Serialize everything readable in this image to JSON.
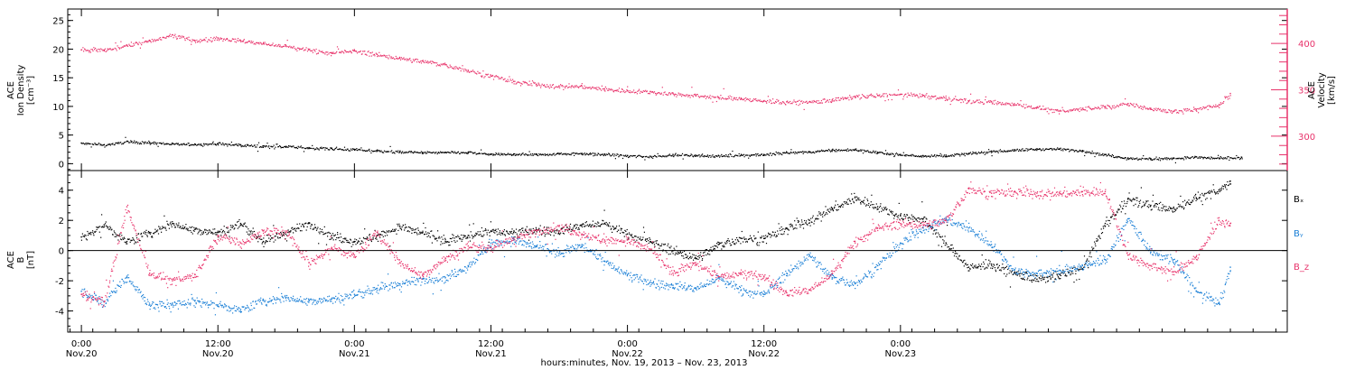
{
  "chart_data": [
    {
      "type": "scatter",
      "panel": "plasma",
      "ylabel_left": [
        "ACE",
        "Ion Density",
        "[cm⁻³]"
      ],
      "ylabel_right": [
        "ACE",
        "Velocity",
        "[km/s]"
      ],
      "y_left": {
        "ticks": [
          0,
          5,
          10,
          15,
          20,
          25
        ],
        "lim": [
          -1.2,
          27
        ]
      },
      "y_right": {
        "ticks": [
          300,
          350,
          400
        ],
        "lim": [
          263,
          437
        ]
      },
      "x": {
        "lim_hours": [
          -1.2,
          106
        ]
      },
      "series": [
        {
          "axis": "left",
          "color": "#000000",
          "points": [
            [
              0,
              3.6
            ],
            [
              2,
              3.3
            ],
            [
              4,
              3.9
            ],
            [
              6,
              3.7
            ],
            [
              8,
              3.5
            ],
            [
              10,
              3.4
            ],
            [
              12,
              3.5
            ],
            [
              14,
              3.3
            ],
            [
              16,
              3.1
            ],
            [
              18,
              3.0
            ],
            [
              20,
              2.8
            ],
            [
              22,
              2.7
            ],
            [
              24,
              2.5
            ],
            [
              26,
              2.3
            ],
            [
              28,
              2.1
            ],
            [
              30,
              2.0
            ],
            [
              32,
              2.0
            ],
            [
              34,
              2.0
            ],
            [
              36,
              1.7
            ],
            [
              38,
              1.7
            ],
            [
              40,
              1.7
            ],
            [
              42,
              1.8
            ],
            [
              44,
              1.8
            ],
            [
              46,
              1.7
            ],
            [
              48,
              1.4
            ],
            [
              50,
              1.3
            ],
            [
              52,
              1.6
            ],
            [
              54,
              1.5
            ],
            [
              56,
              1.4
            ],
            [
              58,
              1.6
            ],
            [
              60,
              1.6
            ],
            [
              62,
              2.0
            ],
            [
              64,
              2.1
            ],
            [
              66,
              2.4
            ],
            [
              68,
              2.5
            ],
            [
              70,
              2.0
            ],
            [
              72,
              1.6
            ],
            [
              74,
              1.4
            ],
            [
              76,
              1.5
            ],
            [
              78,
              1.8
            ],
            [
              80,
              2.2
            ],
            [
              82,
              2.4
            ],
            [
              84,
              2.6
            ],
            [
              86,
              2.6
            ],
            [
              88,
              2.3
            ],
            [
              90,
              1.6
            ],
            [
              92,
              1.0
            ],
            [
              94,
              0.9
            ],
            [
              96,
              1.0
            ],
            [
              98,
              1.2
            ],
            [
              100,
              1.0
            ],
            [
              102,
              1.1
            ]
          ]
        },
        {
          "axis": "right",
          "color": "#e8336b",
          "points": [
            [
              0,
              393
            ],
            [
              2,
              393
            ],
            [
              4,
              398
            ],
            [
              6,
              403
            ],
            [
              8,
              409
            ],
            [
              10,
              403
            ],
            [
              12,
              406
            ],
            [
              14,
              403
            ],
            [
              16,
              400
            ],
            [
              18,
              397
            ],
            [
              20,
              393
            ],
            [
              22,
              390
            ],
            [
              24,
              392
            ],
            [
              26,
              388
            ],
            [
              28,
              384
            ],
            [
              30,
              381
            ],
            [
              32,
              377
            ],
            [
              34,
              371
            ],
            [
              36,
              365
            ],
            [
              38,
              359
            ],
            [
              40,
              356
            ],
            [
              42,
              354
            ],
            [
              44,
              354
            ],
            [
              46,
              351
            ],
            [
              48,
              349
            ],
            [
              50,
              348
            ],
            [
              52,
              346
            ],
            [
              54,
              344
            ],
            [
              56,
              342
            ],
            [
              58,
              341
            ],
            [
              60,
              338
            ],
            [
              62,
              337
            ],
            [
              64,
              337
            ],
            [
              66,
              339
            ],
            [
              68,
              343
            ],
            [
              70,
              344
            ],
            [
              72,
              345
            ],
            [
              74,
              344
            ],
            [
              76,
              341
            ],
            [
              78,
              338
            ],
            [
              80,
              337
            ],
            [
              82,
              335
            ],
            [
              84,
              331
            ],
            [
              86,
              327
            ],
            [
              88,
              330
            ],
            [
              90,
              332
            ],
            [
              92,
              335
            ],
            [
              94,
              330
            ],
            [
              96,
              327
            ],
            [
              98,
              329
            ],
            [
              100,
              334
            ],
            [
              101,
              346
            ]
          ]
        }
      ]
    },
    {
      "type": "scatter",
      "panel": "magnetic-field",
      "ylabel_left": [
        "ACE",
        "B",
        "[nT]"
      ],
      "y_left": {
        "ticks": [
          -4,
          -2,
          0,
          2,
          4
        ],
        "lim": [
          -5.4,
          5.3
        ]
      },
      "x": {
        "lim_hours": [
          -1.2,
          106
        ]
      },
      "series": [
        {
          "name": "Bₓ",
          "color": "#000000",
          "points": [
            [
              0,
              0.9
            ],
            [
              2,
              1.7
            ],
            [
              4,
              0.6
            ],
            [
              6,
              1.2
            ],
            [
              8,
              1.8
            ],
            [
              10,
              1.4
            ],
            [
              12,
              1.2
            ],
            [
              14,
              1.8
            ],
            [
              16,
              0.6
            ],
            [
              18,
              1.2
            ],
            [
              20,
              1.8
            ],
            [
              22,
              1.0
            ],
            [
              24,
              0.6
            ],
            [
              26,
              1.0
            ],
            [
              28,
              1.6
            ],
            [
              30,
              1.2
            ],
            [
              32,
              0.6
            ],
            [
              34,
              1.0
            ],
            [
              36,
              1.3
            ],
            [
              38,
              1.2
            ],
            [
              40,
              1.4
            ],
            [
              42,
              1.3
            ],
            [
              44,
              1.7
            ],
            [
              46,
              1.8
            ],
            [
              48,
              1.1
            ],
            [
              50,
              0.6
            ],
            [
              52,
              0.0
            ],
            [
              54,
              -0.5
            ],
            [
              56,
              0.4
            ],
            [
              58,
              0.8
            ],
            [
              60,
              0.8
            ],
            [
              62,
              1.5
            ],
            [
              64,
              2.0
            ],
            [
              66,
              2.8
            ],
            [
              68,
              3.5
            ],
            [
              70,
              2.9
            ],
            [
              72,
              2.3
            ],
            [
              74,
              2.1
            ],
            [
              76,
              0.5
            ],
            [
              78,
              -1.1
            ],
            [
              80,
              -0.9
            ],
            [
              82,
              -1.5
            ],
            [
              84,
              -1.9
            ],
            [
              86,
              -1.6
            ],
            [
              88,
              -1.2
            ],
            [
              90,
              1.8
            ],
            [
              92,
              3.4
            ],
            [
              94,
              3.0
            ],
            [
              96,
              2.8
            ],
            [
              98,
              3.5
            ],
            [
              100,
              4.0
            ],
            [
              101,
              4.6
            ]
          ]
        },
        {
          "name": "Bᵧ",
          "color": "#1a7fd6",
          "points": [
            [
              0,
              -2.7
            ],
            [
              2,
              -3.4
            ],
            [
              4,
              -1.7
            ],
            [
              6,
              -3.6
            ],
            [
              8,
              -3.6
            ],
            [
              10,
              -3.3
            ],
            [
              12,
              -3.6
            ],
            [
              14,
              -3.9
            ],
            [
              16,
              -3.3
            ],
            [
              18,
              -3.1
            ],
            [
              20,
              -3.3
            ],
            [
              22,
              -3.2
            ],
            [
              24,
              -2.9
            ],
            [
              26,
              -2.5
            ],
            [
              28,
              -2.2
            ],
            [
              30,
              -1.9
            ],
            [
              32,
              -1.8
            ],
            [
              34,
              -1.0
            ],
            [
              36,
              0.5
            ],
            [
              38,
              0.7
            ],
            [
              40,
              0.3
            ],
            [
              42,
              -0.2
            ],
            [
              44,
              0.4
            ],
            [
              46,
              -0.7
            ],
            [
              48,
              -1.6
            ],
            [
              50,
              -2.1
            ],
            [
              52,
              -2.3
            ],
            [
              54,
              -2.5
            ],
            [
              56,
              -1.8
            ],
            [
              58,
              -2.6
            ],
            [
              60,
              -2.9
            ],
            [
              62,
              -1.5
            ],
            [
              64,
              -0.3
            ],
            [
              66,
              -1.8
            ],
            [
              68,
              -2.2
            ],
            [
              70,
              -1.0
            ],
            [
              72,
              0.5
            ],
            [
              74,
              1.5
            ],
            [
              76,
              2.1
            ],
            [
              78,
              1.5
            ],
            [
              80,
              0.4
            ],
            [
              82,
              -1.3
            ],
            [
              84,
              -1.5
            ],
            [
              86,
              -1.3
            ],
            [
              88,
              -1.0
            ],
            [
              90,
              -0.6
            ],
            [
              92,
              2.1
            ],
            [
              94,
              -0.1
            ],
            [
              96,
              -0.6
            ],
            [
              98,
              -2.7
            ],
            [
              100,
              -3.5
            ],
            [
              101,
              -1.1
            ]
          ]
        },
        {
          "name": "B_z",
          "color": "#e8336b",
          "points": [
            [
              0,
              -2.9
            ],
            [
              2,
              -3.4
            ],
            [
              4,
              2.9
            ],
            [
              6,
              -1.5
            ],
            [
              8,
              -2.0
            ],
            [
              10,
              -1.6
            ],
            [
              12,
              1.0
            ],
            [
              14,
              0.5
            ],
            [
              16,
              1.3
            ],
            [
              18,
              1.2
            ],
            [
              20,
              -0.8
            ],
            [
              22,
              0.2
            ],
            [
              24,
              -0.3
            ],
            [
              26,
              1.2
            ],
            [
              28,
              -0.8
            ],
            [
              30,
              -1.6
            ],
            [
              32,
              -0.5
            ],
            [
              34,
              0.3
            ],
            [
              36,
              0.2
            ],
            [
              38,
              0.8
            ],
            [
              40,
              1.3
            ],
            [
              42,
              1.6
            ],
            [
              44,
              1.1
            ],
            [
              46,
              0.7
            ],
            [
              48,
              0.7
            ],
            [
              50,
              0.1
            ],
            [
              52,
              -1.5
            ],
            [
              54,
              -0.8
            ],
            [
              56,
              -1.7
            ],
            [
              58,
              -1.5
            ],
            [
              60,
              -1.7
            ],
            [
              62,
              -2.8
            ],
            [
              64,
              -2.6
            ],
            [
              66,
              -1.5
            ],
            [
              68,
              0.6
            ],
            [
              70,
              1.5
            ],
            [
              72,
              1.8
            ],
            [
              74,
              1.7
            ],
            [
              76,
              2.0
            ],
            [
              78,
              4.1
            ],
            [
              80,
              3.8
            ],
            [
              82,
              3.9
            ],
            [
              84,
              3.8
            ],
            [
              86,
              3.8
            ],
            [
              88,
              3.9
            ],
            [
              90,
              3.9
            ],
            [
              92,
              -0.3
            ],
            [
              94,
              -1.0
            ],
            [
              96,
              -1.4
            ],
            [
              98,
              -0.4
            ],
            [
              100,
              2.0
            ],
            [
              101,
              1.8
            ]
          ]
        }
      ]
    }
  ],
  "x_axis": {
    "ticks": [
      {
        "hour": 0,
        "time": "0:00",
        "date": "Nov.20"
      },
      {
        "hour": 12,
        "time": "12:00",
        "date": "Nov.20"
      },
      {
        "hour": 24,
        "time": "0:00",
        "date": "Nov.21"
      },
      {
        "hour": 36,
        "time": "12:00",
        "date": "Nov.21"
      },
      {
        "hour": 48,
        "time": "0:00",
        "date": "Nov.22"
      },
      {
        "hour": 60,
        "time": "12:00",
        "date": "Nov.22"
      },
      {
        "hour": 72,
        "time": "0:00",
        "date": "Nov.23"
      }
    ],
    "label": "hours:minutes, Nov. 19, 2013 – Nov. 23, 2013"
  }
}
